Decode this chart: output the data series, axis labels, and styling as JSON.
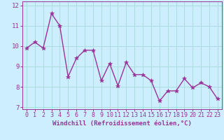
{
  "x": [
    0,
    1,
    2,
    3,
    4,
    5,
    6,
    7,
    8,
    9,
    10,
    11,
    12,
    13,
    14,
    15,
    16,
    17,
    18,
    19,
    20,
    21,
    22,
    23
  ],
  "y": [
    9.9,
    10.2,
    9.9,
    11.6,
    11.0,
    8.5,
    9.4,
    9.8,
    9.8,
    8.3,
    9.15,
    8.05,
    9.2,
    8.6,
    8.6,
    8.3,
    7.3,
    7.8,
    7.8,
    8.4,
    7.95,
    8.2,
    8.0,
    7.4
  ],
  "line_color": "#993399",
  "marker": "*",
  "marker_size": 4,
  "background_color": "#cceeff",
  "grid_color": "#aadddd",
  "xlabel": "Windchill (Refroidissement éolien,°C)",
  "ylim": [
    6.9,
    12.2
  ],
  "xlim": [
    -0.5,
    23.5
  ],
  "yticks": [
    7,
    8,
    9,
    10,
    11,
    12
  ],
  "xticks": [
    0,
    1,
    2,
    3,
    4,
    5,
    6,
    7,
    8,
    9,
    10,
    11,
    12,
    13,
    14,
    15,
    16,
    17,
    18,
    19,
    20,
    21,
    22,
    23
  ],
  "tick_color": "#993399",
  "label_color": "#993399",
  "xlabel_fontsize": 6.5,
  "tick_fontsize": 6.0,
  "ytick_fontsize": 6.5,
  "axis_color": "#993399",
  "linewidth": 1.0
}
